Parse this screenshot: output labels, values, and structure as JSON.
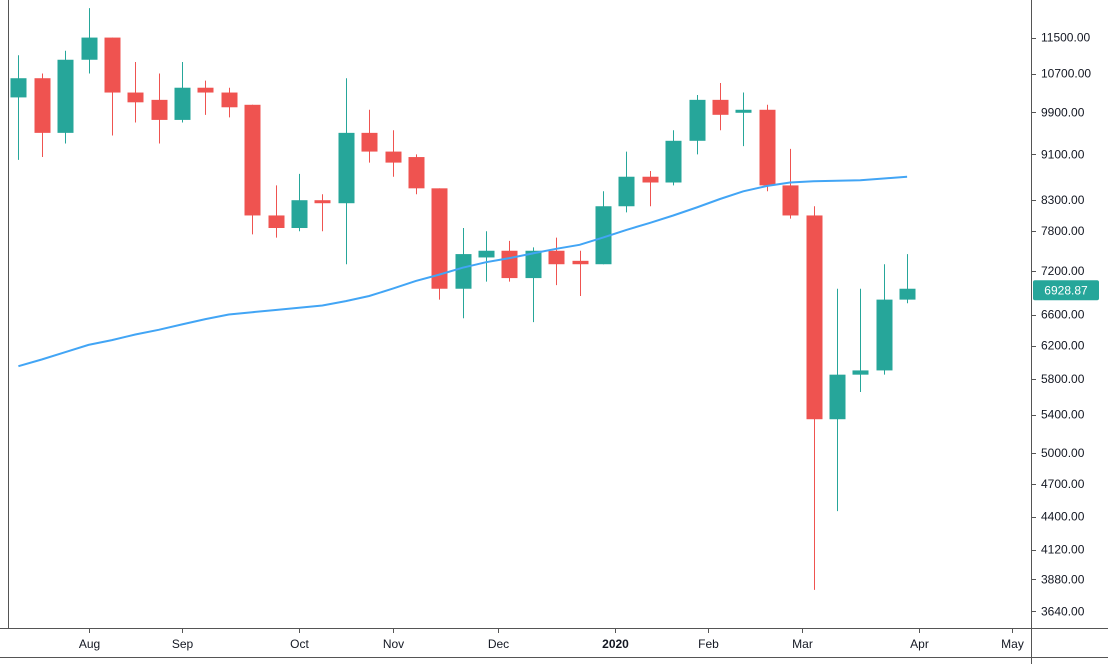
{
  "chart_data": {
    "type": "candlestick",
    "colors": {
      "up": "#26a69a",
      "down": "#ef5350",
      "ma": "#42a5f5",
      "axis": "#555555",
      "text": "#131722",
      "background": "#ffffff"
    },
    "y_axis": {
      "scale": "log",
      "position": "right",
      "ylim": [
        3520,
        12400
      ],
      "ticks": [
        {
          "value": 11500,
          "label": "11500.00"
        },
        {
          "value": 10700,
          "label": "10700.00"
        },
        {
          "value": 9900,
          "label": "9900.00"
        },
        {
          "value": 9100,
          "label": "9100.00"
        },
        {
          "value": 8300,
          "label": "8300.00"
        },
        {
          "value": 7800,
          "label": "7800.00"
        },
        {
          "value": 7200,
          "label": "7200.00"
        },
        {
          "value": 6600,
          "label": "6600.00"
        },
        {
          "value": 6200,
          "label": "6200.00"
        },
        {
          "value": 5800,
          "label": "5800.00"
        },
        {
          "value": 5400,
          "label": "5400.00"
        },
        {
          "value": 5000,
          "label": "5000.00"
        },
        {
          "value": 4700,
          "label": "4700.00"
        },
        {
          "value": 4400,
          "label": "4400.00"
        },
        {
          "value": 4120,
          "label": "4120.00"
        },
        {
          "value": 3880,
          "label": "3880.00"
        },
        {
          "value": 3640,
          "label": "3640.00"
        }
      ]
    },
    "x_axis": {
      "slot_range": [
        -0.4,
        43.3
      ],
      "ticks": [
        {
          "slot": 3,
          "label": "Aug",
          "bold": false
        },
        {
          "slot": 7,
          "label": "Sep",
          "bold": false
        },
        {
          "slot": 12,
          "label": "Oct",
          "bold": false
        },
        {
          "slot": 16,
          "label": "Nov",
          "bold": false
        },
        {
          "slot": 20.5,
          "label": "Dec",
          "bold": false
        },
        {
          "slot": 25.5,
          "label": "2020",
          "bold": true
        },
        {
          "slot": 29.5,
          "label": "Feb",
          "bold": false
        },
        {
          "slot": 33.5,
          "label": "Mar",
          "bold": false
        },
        {
          "slot": 38.5,
          "label": "Apr",
          "bold": false
        },
        {
          "slot": 42.5,
          "label": "May",
          "bold": false
        }
      ]
    },
    "last_price": {
      "value": 6928.87,
      "label": "6928.87"
    },
    "candles": [
      {
        "o": 10200,
        "h": 11100,
        "l": 9000,
        "c": 10600
      },
      {
        "o": 10600,
        "h": 10700,
        "l": 9050,
        "c": 9500
      },
      {
        "o": 9500,
        "h": 11200,
        "l": 9300,
        "c": 11000
      },
      {
        "o": 11000,
        "h": 12200,
        "l": 10700,
        "c": 11500
      },
      {
        "o": 11500,
        "h": 11500,
        "l": 9450,
        "c": 10300
      },
      {
        "o": 10300,
        "h": 10950,
        "l": 9700,
        "c": 10100
      },
      {
        "o": 10150,
        "h": 10700,
        "l": 9300,
        "c": 9750
      },
      {
        "o": 9750,
        "h": 10950,
        "l": 9700,
        "c": 10400
      },
      {
        "o": 10400,
        "h": 10550,
        "l": 9850,
        "c": 10300
      },
      {
        "o": 10300,
        "h": 10400,
        "l": 9800,
        "c": 10000
      },
      {
        "o": 10050,
        "h": 10050,
        "l": 7750,
        "c": 8050
      },
      {
        "o": 8050,
        "h": 8550,
        "l": 7700,
        "c": 7850
      },
      {
        "o": 7850,
        "h": 8750,
        "l": 7800,
        "c": 8300
      },
      {
        "o": 8300,
        "h": 8400,
        "l": 7800,
        "c": 8250
      },
      {
        "o": 8250,
        "h": 10600,
        "l": 7300,
        "c": 9500
      },
      {
        "o": 9500,
        "h": 9950,
        "l": 8950,
        "c": 9150
      },
      {
        "o": 9150,
        "h": 9550,
        "l": 8700,
        "c": 8950
      },
      {
        "o": 9050,
        "h": 9100,
        "l": 8400,
        "c": 8500
      },
      {
        "o": 8500,
        "h": 8500,
        "l": 6800,
        "c": 6950
      },
      {
        "o": 6950,
        "h": 7850,
        "l": 6550,
        "c": 7450
      },
      {
        "o": 7400,
        "h": 7800,
        "l": 7050,
        "c": 7500
      },
      {
        "o": 7500,
        "h": 7650,
        "l": 7050,
        "c": 7100
      },
      {
        "o": 7100,
        "h": 7550,
        "l": 6500,
        "c": 7500
      },
      {
        "o": 7500,
        "h": 7700,
        "l": 7000,
        "c": 7300
      },
      {
        "o": 7350,
        "h": 7500,
        "l": 6850,
        "c": 7300
      },
      {
        "o": 7300,
        "h": 8450,
        "l": 7300,
        "c": 8200
      },
      {
        "o": 8200,
        "h": 9150,
        "l": 8100,
        "c": 8700
      },
      {
        "o": 8700,
        "h": 8800,
        "l": 8200,
        "c": 8600
      },
      {
        "o": 8600,
        "h": 9550,
        "l": 8550,
        "c": 9350
      },
      {
        "o": 9350,
        "h": 10250,
        "l": 9100,
        "c": 10150
      },
      {
        "o": 10150,
        "h": 10500,
        "l": 9550,
        "c": 9850
      },
      {
        "o": 9900,
        "h": 10300,
        "l": 9250,
        "c": 9950
      },
      {
        "o": 9950,
        "h": 10050,
        "l": 8450,
        "c": 8550
      },
      {
        "o": 8550,
        "h": 9200,
        "l": 8000,
        "c": 8050
      },
      {
        "o": 8050,
        "h": 8200,
        "l": 3800,
        "c": 5350
      },
      {
        "o": 5350,
        "h": 6950,
        "l": 4450,
        "c": 5850
      },
      {
        "o": 5850,
        "h": 6950,
        "l": 5650,
        "c": 5900
      },
      {
        "o": 5900,
        "h": 7300,
        "l": 5850,
        "c": 6800
      },
      {
        "o": 6800,
        "h": 7450,
        "l": 6750,
        "c": 6950
      }
    ],
    "moving_average": [
      {
        "slot": 0,
        "value": 5950
      },
      {
        "slot": 1,
        "value": 6030
      },
      {
        "slot": 2,
        "value": 6120
      },
      {
        "slot": 3,
        "value": 6210
      },
      {
        "slot": 4,
        "value": 6270
      },
      {
        "slot": 5,
        "value": 6340
      },
      {
        "slot": 6,
        "value": 6400
      },
      {
        "slot": 7,
        "value": 6470
      },
      {
        "slot": 8,
        "value": 6540
      },
      {
        "slot": 9,
        "value": 6600
      },
      {
        "slot": 10,
        "value": 6630
      },
      {
        "slot": 11,
        "value": 6660
      },
      {
        "slot": 12,
        "value": 6690
      },
      {
        "slot": 13,
        "value": 6720
      },
      {
        "slot": 14,
        "value": 6780
      },
      {
        "slot": 15,
        "value": 6850
      },
      {
        "slot": 16,
        "value": 6950
      },
      {
        "slot": 17,
        "value": 7060
      },
      {
        "slot": 18,
        "value": 7150
      },
      {
        "slot": 19,
        "value": 7250
      },
      {
        "slot": 20,
        "value": 7330
      },
      {
        "slot": 21,
        "value": 7390
      },
      {
        "slot": 22,
        "value": 7460
      },
      {
        "slot": 23,
        "value": 7530
      },
      {
        "slot": 24,
        "value": 7590
      },
      {
        "slot": 25,
        "value": 7700
      },
      {
        "slot": 26,
        "value": 7820
      },
      {
        "slot": 27,
        "value": 7930
      },
      {
        "slot": 28,
        "value": 8050
      },
      {
        "slot": 29,
        "value": 8180
      },
      {
        "slot": 30,
        "value": 8320
      },
      {
        "slot": 31,
        "value": 8450
      },
      {
        "slot": 32,
        "value": 8540
      },
      {
        "slot": 33,
        "value": 8600
      },
      {
        "slot": 34,
        "value": 8620
      },
      {
        "slot": 35,
        "value": 8630
      },
      {
        "slot": 36,
        "value": 8640
      },
      {
        "slot": 37,
        "value": 8670
      },
      {
        "slot": 38,
        "value": 8700
      }
    ]
  }
}
